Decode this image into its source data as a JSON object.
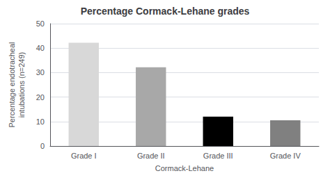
{
  "chart_data": {
    "type": "bar",
    "title": "Percentage Cormack-Lehane grades",
    "xlabel": "Cormack-Lehane",
    "ylabel": "Percentage endotracheal\nintubations (n=249)",
    "categories": [
      "Grade I",
      "Grade II",
      "Grade III",
      "Grade IV"
    ],
    "values": [
      42.2,
      32.2,
      12.0,
      10.5
    ],
    "colors": [
      "#d8d8d8",
      "#a8a8a8",
      "#000000",
      "#808080"
    ],
    "ylim": [
      0,
      50
    ],
    "yticks": [
      0,
      10,
      20,
      30,
      40,
      50
    ],
    "grid": true
  }
}
